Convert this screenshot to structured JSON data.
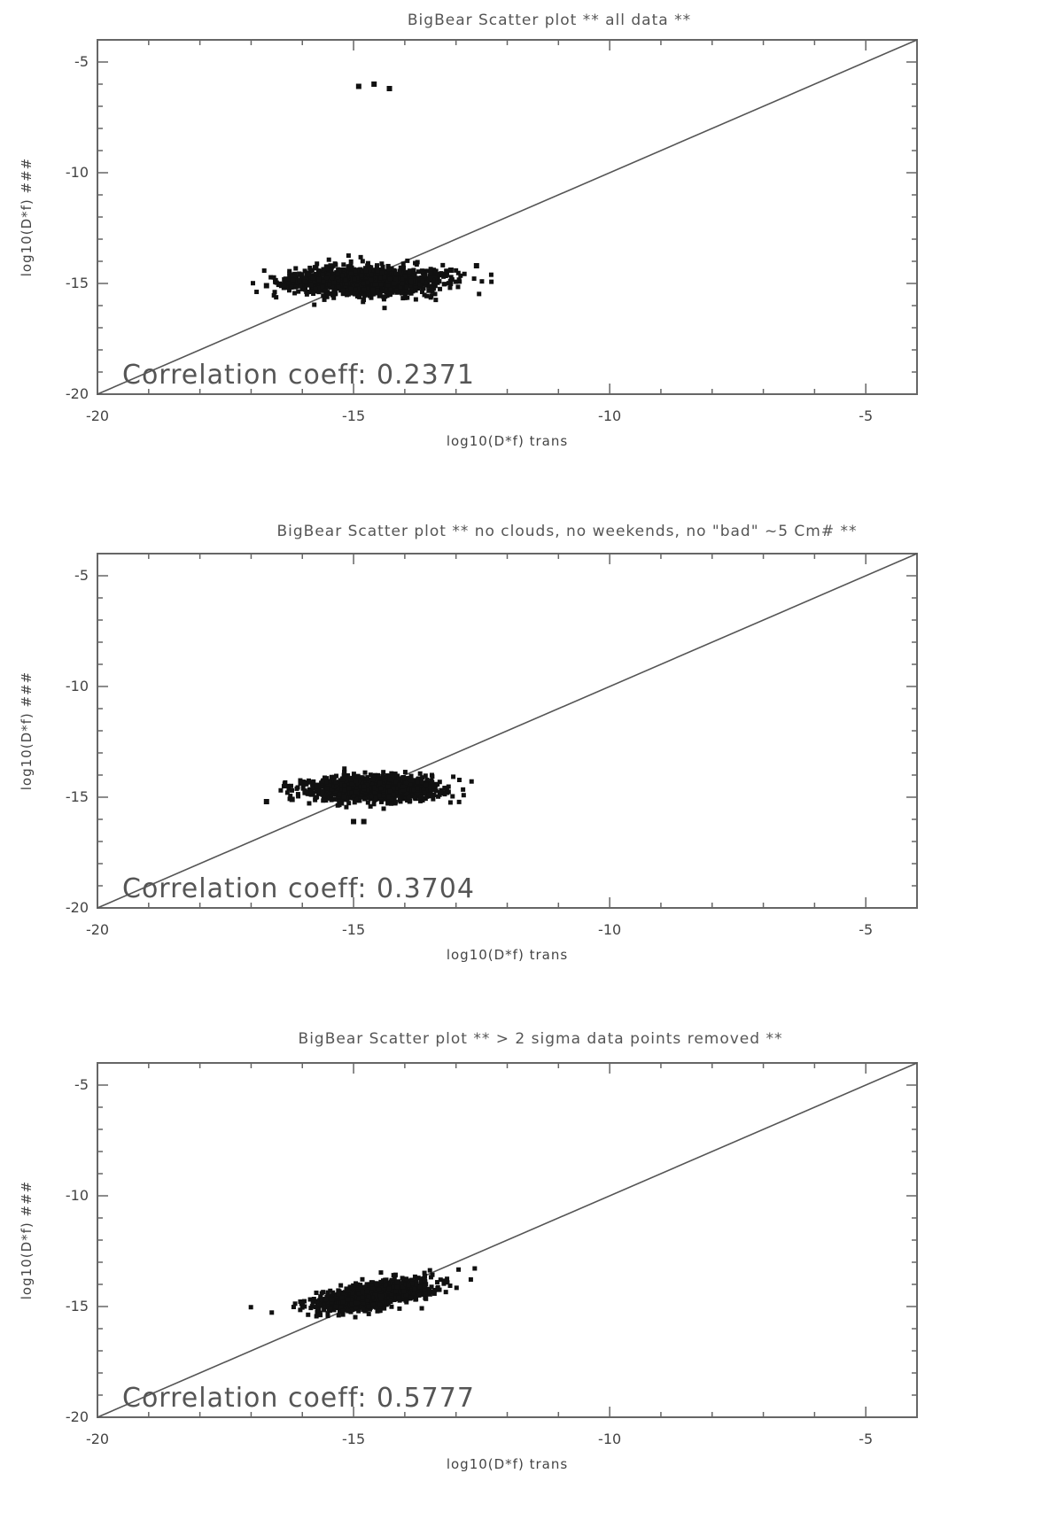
{
  "chart_data": [
    {
      "type": "scatter",
      "title": "BigBear Scatter plot ** all data **",
      "xlabel": "log10(D*f) trans",
      "ylabel": "log10(D*f) ###",
      "xlim": [
        -20,
        -4
      ],
      "ylim": [
        -20,
        -4
      ],
      "xticks": [
        "-20",
        "-15",
        "-10",
        "-5"
      ],
      "yticks": [
        "-5",
        "-10",
        "-15",
        "-20"
      ],
      "annotation": "Correlation coeff: 0.2371",
      "fit_line": [
        [
          -20,
          -20
        ],
        [
          -4,
          -4
        ]
      ],
      "cluster": {
        "x_center": -14.8,
        "y_center": -14.9,
        "x_spread": 1.6,
        "y_spread": 0.7
      },
      "outliers": [
        [
          -14.9,
          -6.1
        ],
        [
          -14.6,
          -6.0
        ],
        [
          -14.3,
          -6.2
        ],
        [
          -13.1,
          -14.4
        ],
        [
          -16.7,
          -15.1
        ],
        [
          -12.6,
          -14.2
        ]
      ]
    },
    {
      "type": "scatter",
      "title": "BigBear Scatter plot ** no clouds, no weekends, no \"bad\" ~5 Cm# **",
      "xlabel": "log10(D*f) trans",
      "ylabel": "log10(D*f) ###",
      "xlim": [
        -20,
        -4
      ],
      "ylim": [
        -20,
        -4
      ],
      "xticks": [
        "-20",
        "-15",
        "-10",
        "-5"
      ],
      "yticks": [
        "-5",
        "-10",
        "-15",
        "-20"
      ],
      "annotation": "Correlation coeff: 0.3704",
      "fit_line": [
        [
          -20,
          -20
        ],
        [
          -4,
          -4
        ]
      ],
      "cluster": {
        "x_center": -14.6,
        "y_center": -14.6,
        "x_spread": 1.3,
        "y_spread": 0.6
      },
      "outliers": [
        [
          -16.7,
          -15.2
        ],
        [
          -16.2,
          -15.1
        ],
        [
          -13.3,
          -14.8
        ],
        [
          -15.0,
          -16.1
        ],
        [
          -14.8,
          -16.1
        ]
      ]
    },
    {
      "type": "scatter",
      "title": "BigBear Scatter plot ** > 2 sigma data points removed **",
      "xlabel": "log10(D*f) trans",
      "ylabel": "log10(D*f) ###",
      "xlim": [
        -20,
        -4
      ],
      "ylim": [
        -20,
        -4
      ],
      "xticks": [
        "-20",
        "-15",
        "-10",
        "-5"
      ],
      "yticks": [
        "-5",
        "-10",
        "-15",
        "-20"
      ],
      "annotation": "Correlation coeff: 0.5777",
      "fit_line": [
        [
          -20,
          -20
        ],
        [
          -4,
          -4
        ]
      ],
      "cluster": {
        "x_center": -14.6,
        "y_center": -14.5,
        "x_spread": 1.2,
        "y_spread": 0.6
      },
      "outliers": []
    }
  ]
}
